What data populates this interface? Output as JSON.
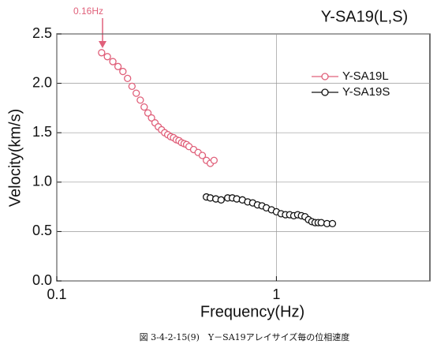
{
  "chart_data": {
    "type": "scatter",
    "title": "Y-SA19(L,S)",
    "annotation": "0.16Hz",
    "caption": "図 3-4-2-15(9)　Y－SA19アレイサイズ毎の位相速度",
    "x_label": "Frequency(Hz)",
    "y_label": "Velocity(km/s)",
    "x_scale": "log",
    "xlim": [
      0.1,
      5
    ],
    "xticks": [
      0.1,
      1
    ],
    "ylim": [
      0,
      2.5
    ],
    "yticks": [
      {
        "value": 0,
        "label": "0.0"
      },
      {
        "value": 0.5,
        "label": "0.5"
      },
      {
        "value": 1,
        "label": "1.0"
      },
      {
        "value": 1.5,
        "label": "1.5"
      },
      {
        "value": 2,
        "label": "2.0"
      },
      {
        "value": 2.5,
        "label": "2.5"
      }
    ],
    "grid": true,
    "legend": "upper right",
    "series": [
      {
        "name": "Y-SA19L",
        "color": "#e0607a",
        "x": [
          0.16,
          0.17,
          0.18,
          0.19,
          0.2,
          0.21,
          0.22,
          0.23,
          0.24,
          0.25,
          0.26,
          0.27,
          0.28,
          0.29,
          0.3,
          0.31,
          0.32,
          0.33,
          0.34,
          0.35,
          0.36,
          0.37,
          0.38,
          0.39,
          0.4,
          0.42,
          0.44,
          0.46,
          0.48,
          0.5,
          0.52
        ],
        "values": [
          2.31,
          2.27,
          2.22,
          2.17,
          2.12,
          2.05,
          1.97,
          1.9,
          1.83,
          1.76,
          1.7,
          1.65,
          1.6,
          1.56,
          1.53,
          1.5,
          1.48,
          1.46,
          1.45,
          1.43,
          1.42,
          1.4,
          1.39,
          1.38,
          1.36,
          1.33,
          1.3,
          1.27,
          1.22,
          1.19,
          1.22
        ]
      },
      {
        "name": "Y-SA19S",
        "color": "#111111",
        "x": [
          0.48,
          0.5,
          0.53,
          0.56,
          0.6,
          0.63,
          0.66,
          0.7,
          0.74,
          0.78,
          0.82,
          0.86,
          0.9,
          0.95,
          1.0,
          1.05,
          1.1,
          1.15,
          1.2,
          1.25,
          1.3,
          1.35,
          1.4,
          1.45,
          1.5,
          1.55,
          1.6,
          1.7,
          1.8
        ],
        "values": [
          0.85,
          0.84,
          0.83,
          0.82,
          0.84,
          0.84,
          0.83,
          0.82,
          0.8,
          0.79,
          0.77,
          0.76,
          0.74,
          0.72,
          0.7,
          0.68,
          0.67,
          0.67,
          0.66,
          0.67,
          0.66,
          0.65,
          0.62,
          0.6,
          0.59,
          0.59,
          0.59,
          0.58,
          0.58
        ]
      }
    ]
  }
}
